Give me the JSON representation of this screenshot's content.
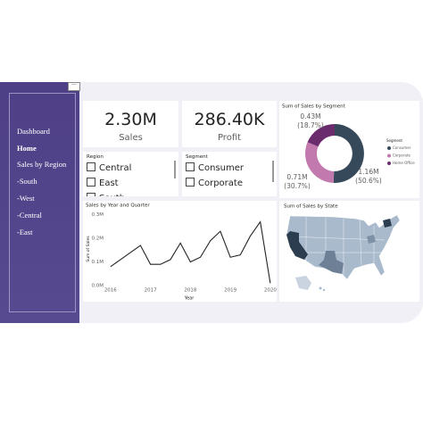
{
  "nav": {
    "items": [
      "Dashboard",
      "Home",
      "Sales by Region",
      "-South",
      "-West",
      "-Central",
      "-East"
    ]
  },
  "kpis": [
    {
      "value": "2.30M",
      "label": "Sales"
    },
    {
      "value": "286.40K",
      "label": "Profit"
    }
  ],
  "slicers": [
    {
      "title": "Region",
      "options": [
        "Central",
        "East",
        "South"
      ]
    },
    {
      "title": "Segment",
      "options": [
        "Consumer",
        "Corporate"
      ]
    }
  ],
  "donut": {
    "type": "pie",
    "title": "Sum of Sales by Segment",
    "legend_title": "Segment",
    "categories": [
      "Consumer",
      "Corporate",
      "Home Office"
    ],
    "values": [
      50.6,
      30.7,
      18.7
    ],
    "value_labels": [
      "(50.6%)",
      "(30.7%)",
      "(18.7%)"
    ],
    "sales": [
      1.16,
      0.71,
      0.43
    ],
    "sales_labels": [
      "1.16M",
      "0.71M",
      "0.43M"
    ],
    "colors": [
      "#35495a",
      "#c27aae",
      "#6b2c6e"
    ]
  },
  "line_chart": {
    "type": "line",
    "title": "Sales by Year and Quarter",
    "x_label": "Year",
    "y_label": "Sum of Sales",
    "x": [
      2016,
      2016.25,
      2016.5,
      2016.75,
      2017,
      2017.25,
      2017.5,
      2017.75,
      2018,
      2018.25,
      2018.5,
      2018.75,
      2019,
      2019.25,
      2019.5,
      2019.75,
      2020
    ],
    "values": [
      0.08,
      0.11,
      0.14,
      0.17,
      0.09,
      0.09,
      0.11,
      0.18,
      0.1,
      0.12,
      0.19,
      0.23,
      0.12,
      0.13,
      0.21,
      0.27,
      0.01
    ],
    "color": "#252423",
    "xlim": [
      2015.87,
      2020.07
    ],
    "ylim": [
      0,
      0.31
    ],
    "xticks": [
      2016,
      2017,
      2018,
      2019,
      2020
    ],
    "yticks": [
      {
        "value": 0,
        "label": "0.0M"
      },
      {
        "value": 0.1,
        "label": "0.1M"
      },
      {
        "value": 0.2,
        "label": "0.2M"
      },
      {
        "value": 0.3,
        "label": "0.3M"
      }
    ]
  },
  "map": {
    "title": "Sum of Sales by State"
  }
}
